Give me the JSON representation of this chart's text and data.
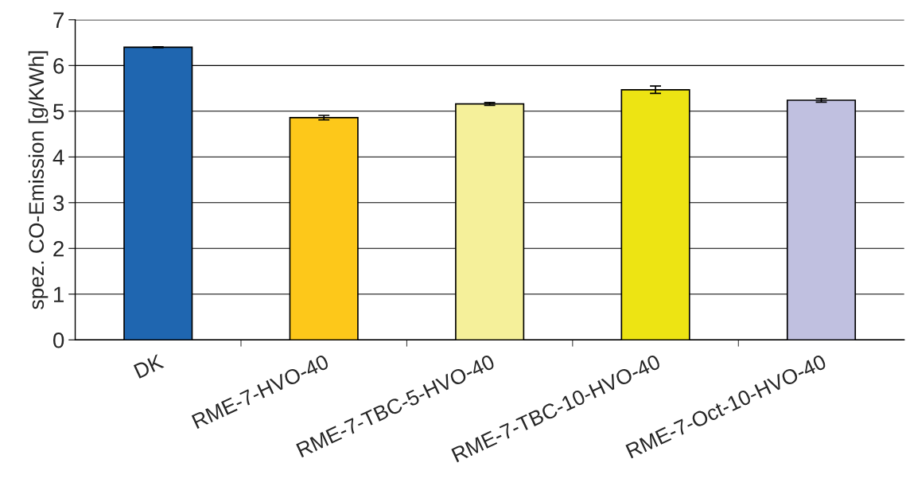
{
  "chart_data": {
    "type": "bar",
    "ylabel": "spez. CO-Emission [g/KWh]",
    "categories": [
      "DK",
      "RME-7-HVO-40",
      "RME-7-TBC-5-HVO-40",
      "RME-7-TBC-10-HVO-40",
      "RME-7-Oct-10-HVO-40"
    ],
    "values": [
      6.4,
      4.86,
      5.16,
      5.47,
      5.24
    ],
    "errors": [
      0.01,
      0.05,
      0.03,
      0.08,
      0.04
    ],
    "colors": [
      "#1f66b0",
      "#fdc81a",
      "#f5f09a",
      "#ede413",
      "#c0c0e0"
    ],
    "ylim": [
      0,
      7
    ],
    "yticks": [
      0,
      1,
      2,
      3,
      4,
      5,
      6,
      7
    ],
    "grid": "y"
  }
}
